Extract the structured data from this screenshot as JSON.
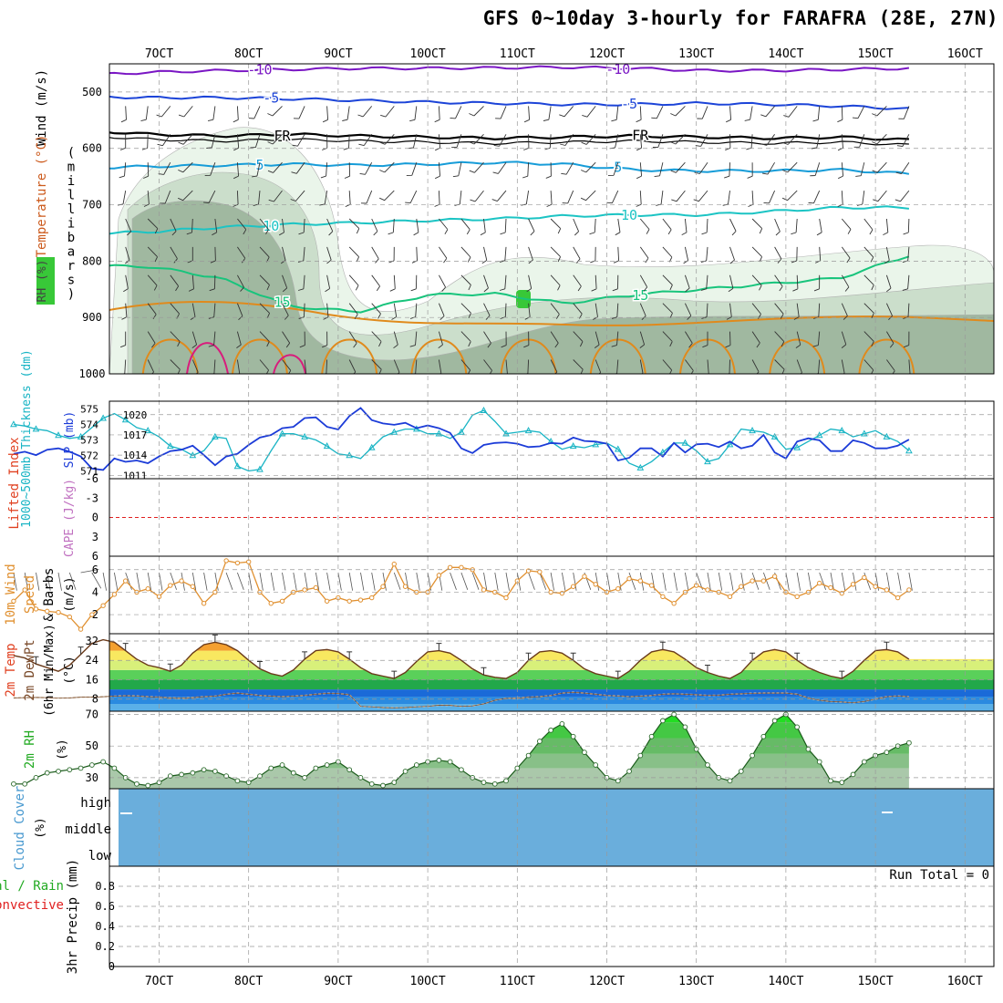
{
  "title": "GFS 0~10day 3-hourly for FARAFRA (28E, 27N)",
  "colors": {
    "temp_cold": "#7a16c4",
    "temp_cool": "#1c44d8",
    "temp_freezing": "#000000",
    "temp_mild": "#169cd8",
    "temp_warm1": "#1cc4c4",
    "temp_warm2": "#18c47c",
    "temp_hot": "#e08a1c",
    "temp_veryhot": "#d81c7c",
    "rh_light": "#e8f4e8",
    "rh_mid": "#c8dcc8",
    "rh_dark": "#9cb49c",
    "rh_green": "#38c838",
    "slp_line": "#1c3cd8",
    "thick_line": "#18b4c4",
    "wind_line": "#e09030",
    "rh_area": "#aac8aa",
    "cloud_fill": "#6aaedc",
    "lifted_zero": "#e02020"
  },
  "chart_data": {
    "type": "meteogram",
    "x_tick_labels": [
      "7OCT",
      "8OCT",
      "9OCT",
      "10OCT",
      "11OCT",
      "12OCT",
      "13OCT",
      "14OCT",
      "15OCT",
      "16OCT"
    ],
    "n_steps": 81,
    "panels": {
      "upper_air": {
        "ylabel": "(millibars)",
        "ylabel_chars": [
          "(",
          "m",
          "i",
          "l",
          "l",
          "i",
          "b",
          "a",
          "r",
          "s",
          ")"
        ],
        "side_wind": "Wind (m/s)",
        "side_temp": "Temperature (°C)",
        "side_rh": "RH (%)",
        "pressure_ticks": [
          "500",
          "600",
          "700",
          "800",
          "900",
          "1000"
        ],
        "pressure_levels": [
          500,
          600,
          700,
          800,
          900,
          1000
        ],
        "ylim": [
          450,
          1000
        ],
        "isotherms": [
          {
            "label": "-10",
            "color": "#7a16c4",
            "anchor": [
              478,
              470,
              465,
              462,
              460,
              458,
              458,
              457,
              456,
              458,
              462,
              462,
              460,
              458
            ]
          },
          {
            "label": "-5",
            "color": "#1c44d8",
            "anchor": [
              505,
              508,
              510,
              510,
              512,
              515,
              518,
              520,
              522,
              522,
              520,
              522,
              525,
              530
            ]
          },
          {
            "label": "FR",
            "color": "#000000",
            "anchor": [
              560,
              568,
              575,
              578,
              575,
              578,
              580,
              582,
              580,
              578,
              580,
              582,
              580,
              585
            ]
          },
          {
            "label": "5",
            "color": "#169cd8",
            "anchor": [
              660,
              635,
              632,
              630,
              628,
              630,
              628,
              625,
              628,
              638,
              640,
              640,
              638,
              645
            ]
          },
          {
            "label": "10",
            "color": "#1cc4c4",
            "anchor": [
              760,
              752,
              748,
              740,
              735,
              732,
              728,
              725,
              720,
              718,
              718,
              712,
              705,
              705
            ]
          },
          {
            "label": "15",
            "color": "#18c47c",
            "anchor": [
              810,
              808,
              810,
              830,
              880,
              890,
              860,
              858,
              875,
              860,
              850,
              840,
              830,
              790
            ]
          }
        ]
      },
      "slp_thickness": {
        "ylabel_slp": "SLP (mb)",
        "ylabel_thick": "1000~500mb Thickness (dm)",
        "thick_ticks": [
          "575",
          "574",
          "573",
          "572",
          "571"
        ],
        "slp_ticks": [
          "1020",
          "1017",
          "1014",
          "1011"
        ],
        "slp_lim": [
          1010.5,
          1022
        ],
        "thick_lim": [
          570.5,
          575.5
        ],
        "slp": [
          1014.2,
          1014.5,
          1014.0,
          1014.8,
          1015.0,
          1014.5,
          1013.8,
          1012.0,
          1011.8,
          1013.5,
          1013.0,
          1013.2,
          1012.8,
          1013.8,
          1014.6,
          1014.8,
          1015.4,
          1014.0,
          1012.5,
          1013.8,
          1014.2,
          1015.5,
          1016.6,
          1017.0,
          1018.0,
          1018.2,
          1019.5,
          1019.6,
          1018.2,
          1017.8,
          1019.8,
          1021.0,
          1019.2,
          1018.7,
          1018.5,
          1018.8,
          1018.0,
          1018.4,
          1018.0,
          1017.3,
          1015.0,
          1014.3,
          1015.5,
          1015.8,
          1015.9,
          1015.7,
          1015.2,
          1015.3,
          1015.8,
          1015.7,
          1016.6,
          1016.1,
          1016.0,
          1015.7,
          1013.2,
          1013.6,
          1015.0,
          1015.0,
          1013.8,
          1015.8,
          1014.4,
          1015.6,
          1015.7,
          1015.2,
          1016.0,
          1015.0,
          1015.4,
          1017.0,
          1014.4,
          1013.5,
          1016.0,
          1016.5,
          1016.2,
          1014.6,
          1014.6,
          1016.2,
          1015.8,
          1015.0,
          1015.0,
          1015.4,
          1016.3
        ],
        "thickness": [
          574.0,
          573.9,
          573.7,
          573.6,
          573.3,
          573.1,
          573.2,
          573.8,
          574.4,
          574.7,
          574.3,
          573.8,
          573.6,
          573.2,
          572.6,
          572.4,
          572.0,
          572.3,
          573.2,
          573.1,
          571.3,
          571.0,
          571.1,
          572.3,
          573.4,
          573.4,
          573.2,
          573.0,
          572.6,
          572.1,
          572.0,
          571.8,
          572.5,
          573.2,
          573.5,
          573.7,
          573.7,
          573.4,
          573.4,
          573.1,
          573.5,
          574.6,
          574.9,
          574.2,
          573.4,
          573.5,
          573.6,
          573.5,
          572.9,
          572.4,
          572.6,
          572.5,
          572.7,
          572.8,
          572.4,
          571.5,
          571.2,
          571.6,
          572.2,
          572.8,
          572.8,
          572.3,
          571.6,
          571.8,
          572.7,
          573.7,
          573.6,
          573.5,
          573.2,
          572.4,
          572.5,
          572.9,
          573.3,
          573.7,
          573.6,
          573.2,
          573.4,
          573.6,
          573.2,
          572.9,
          572.3
        ]
      },
      "stability": {
        "ylabel_li": "Lifted Index",
        "ylabel_cape": "CAPE (J/kg)",
        "ticks": [
          "-6",
          "-3",
          "0",
          "3",
          "6"
        ],
        "lim": [
          -6,
          6
        ],
        "lifted_index": [
          null,
          null,
          null,
          null,
          null,
          null,
          null,
          null,
          null,
          null,
          null,
          null,
          null,
          null,
          null,
          null,
          null,
          null,
          null,
          null,
          null,
          null,
          null,
          null,
          null,
          null,
          null,
          null,
          null,
          null,
          null,
          null,
          null,
          null,
          null,
          null,
          null,
          null,
          null,
          null,
          null,
          null,
          null,
          null,
          null,
          null,
          null,
          null,
          null,
          null,
          null,
          null,
          null,
          null,
          null,
          null,
          null,
          null,
          null,
          null,
          null,
          null,
          null,
          null,
          null,
          null,
          null,
          null,
          null,
          null,
          null,
          null,
          null,
          null,
          null,
          null,
          null,
          null,
          null,
          null,
          null
        ]
      },
      "wind_10m": {
        "ylabel_1": "10m Wind",
        "ylabel_2": "Speed",
        "ylabel_3": "& Barbs",
        "unit": "(m/s)",
        "ticks": [
          "6",
          "4",
          "2"
        ],
        "lim": [
          0.3,
          7.2
        ],
        "speed": [
          3.2,
          4.2,
          2.5,
          2.3,
          2.2,
          1.8,
          0.7,
          2.0,
          2.8,
          3.8,
          5.0,
          4.0,
          4.3,
          3.6,
          4.6,
          5.0,
          4.5,
          3.0,
          4.0,
          6.8,
          6.6,
          6.7,
          4.0,
          3.0,
          3.2,
          4.0,
          4.2,
          4.4,
          3.2,
          3.5,
          3.2,
          3.3,
          3.5,
          4.5,
          6.5,
          4.5,
          4.0,
          4.0,
          5.5,
          6.2,
          6.2,
          6.0,
          4.2,
          4.0,
          3.5,
          5.0,
          5.9,
          5.8,
          4.0,
          3.9,
          4.5,
          5.4,
          4.7,
          4.0,
          4.3,
          5.2,
          5.0,
          4.6,
          3.6,
          3.0,
          4.0,
          4.6,
          4.2,
          4.0,
          3.6,
          4.5,
          5.0,
          5.0,
          5.4,
          4.0,
          3.6,
          4.0,
          4.8,
          4.4,
          3.9,
          4.7,
          5.3,
          4.5,
          4.2,
          3.5,
          4.2
        ],
        "direction_deg": [
          350,
          350,
          350,
          350,
          350,
          340,
          260,
          330,
          350,
          350,
          340,
          350,
          350,
          350,
          340,
          350,
          350,
          350,
          350,
          340,
          340,
          350,
          350,
          350,
          350,
          350,
          350,
          350,
          350,
          350,
          350,
          350,
          350,
          350,
          340,
          350,
          350,
          350,
          350,
          340,
          340,
          340,
          350,
          350,
          350,
          350,
          340,
          340,
          350,
          350,
          350,
          340,
          350,
          350,
          350,
          340,
          350,
          350,
          350,
          350,
          350,
          340,
          350,
          350,
          350,
          350,
          340,
          340,
          340,
          350,
          350,
          350,
          340,
          350,
          350,
          350,
          340,
          350,
          350,
          350,
          350
        ]
      },
      "temp_2m": {
        "ylabel_1": "2m Temp",
        "ylabel_2": "2m DewPt",
        "ylabel_3": "(6hr Min/Max)",
        "unit": "(°C)",
        "ticks": [
          "32",
          "24",
          "16",
          "8"
        ],
        "lim": [
          3,
          35
        ],
        "temperature": [
          26.0,
          25.0,
          22.5,
          21.0,
          19.5,
          22.0,
          26.5,
          31.0,
          32.5,
          31.5,
          28.0,
          24.5,
          22.0,
          21.0,
          19.5,
          22.0,
          27.0,
          30.5,
          31.5,
          30.5,
          28.0,
          24.0,
          20.5,
          18.5,
          17.5,
          20.0,
          24.5,
          28.0,
          28.5,
          27.5,
          24.5,
          21.0,
          18.5,
          17.5,
          16.5,
          19.0,
          23.5,
          27.5,
          28.0,
          27.0,
          24.0,
          20.5,
          18.0,
          17.0,
          16.5,
          19.0,
          24.0,
          27.5,
          28.0,
          27.0,
          24.0,
          20.5,
          18.5,
          17.5,
          16.5,
          19.5,
          24.0,
          27.5,
          28.5,
          27.5,
          24.5,
          21.0,
          19.0,
          17.5,
          16.5,
          19.0,
          24.0,
          27.5,
          28.5,
          27.5,
          24.0,
          21.0,
          19.0,
          17.5,
          16.5,
          19.5,
          24.0,
          28.0,
          28.5,
          27.5,
          24.5
        ],
        "dewpoint": [
          8.5,
          8.6,
          8.7,
          8.6,
          8.4,
          8.5,
          8.8,
          8.8,
          9.0,
          9.2,
          9.4,
          9.3,
          9.0,
          8.8,
          8.5,
          8.4,
          8.6,
          9.0,
          9.2,
          10.0,
          10.5,
          10.0,
          9.5,
          9.2,
          9.0,
          9.2,
          9.5,
          10.0,
          10.4,
          10.3,
          9.8,
          5.0,
          4.8,
          4.5,
          4.4,
          4.5,
          4.8,
          5.0,
          5.5,
          5.4,
          5.0,
          5.2,
          6.0,
          7.5,
          8.3,
          8.4,
          8.8,
          9.0,
          9.5,
          10.5,
          10.8,
          10.5,
          10.0,
          9.5,
          9.3,
          9.0,
          9.2,
          9.5,
          10.0,
          10.2,
          10.0,
          9.8,
          9.5,
          9.6,
          10.0,
          10.2,
          10.4,
          10.5,
          10.5,
          10.5,
          10.0,
          8.5,
          7.5,
          7.0,
          6.8,
          6.5,
          7.0,
          8.0,
          9.0,
          9.3,
          9.0
        ]
      },
      "rh_2m": {
        "ylabel": "2m RH",
        "unit": "(%)",
        "ticks": [
          "70",
          "50",
          "30"
        ],
        "lim": [
          23,
          72
        ],
        "rh": [
          26,
          26,
          30,
          33,
          34,
          35,
          36,
          38,
          40,
          36,
          30,
          26,
          25,
          27,
          31,
          32,
          33,
          35,
          34,
          31,
          28,
          27,
          31,
          36,
          38,
          33,
          30,
          36,
          38,
          40,
          35,
          30,
          26,
          25,
          27,
          34,
          38,
          40,
          41,
          40,
          35,
          30,
          27,
          26,
          28,
          36,
          44,
          53,
          60,
          64,
          56,
          46,
          38,
          30,
          28,
          34,
          44,
          56,
          66,
          70,
          62,
          48,
          38,
          30,
          28,
          34,
          44,
          56,
          66,
          70,
          62,
          48,
          40,
          28,
          27,
          32,
          40,
          44,
          46,
          50,
          52
        ]
      },
      "cloud_cover": {
        "ylabel_1": "Cloud Cover",
        "unit": "(%)",
        "levels": [
          "high",
          "middle",
          "low"
        ]
      },
      "precip": {
        "ylabel_main": "3hr Precip (mm)",
        "ylabel_total": "Total / Rain",
        "ylabel_conv": "Convective",
        "ticks": [
          "0.8",
          "0.6",
          "0.4",
          "0.2",
          "0"
        ],
        "lim": [
          0,
          1
        ],
        "run_total": "Run Total = 0"
      }
    }
  }
}
